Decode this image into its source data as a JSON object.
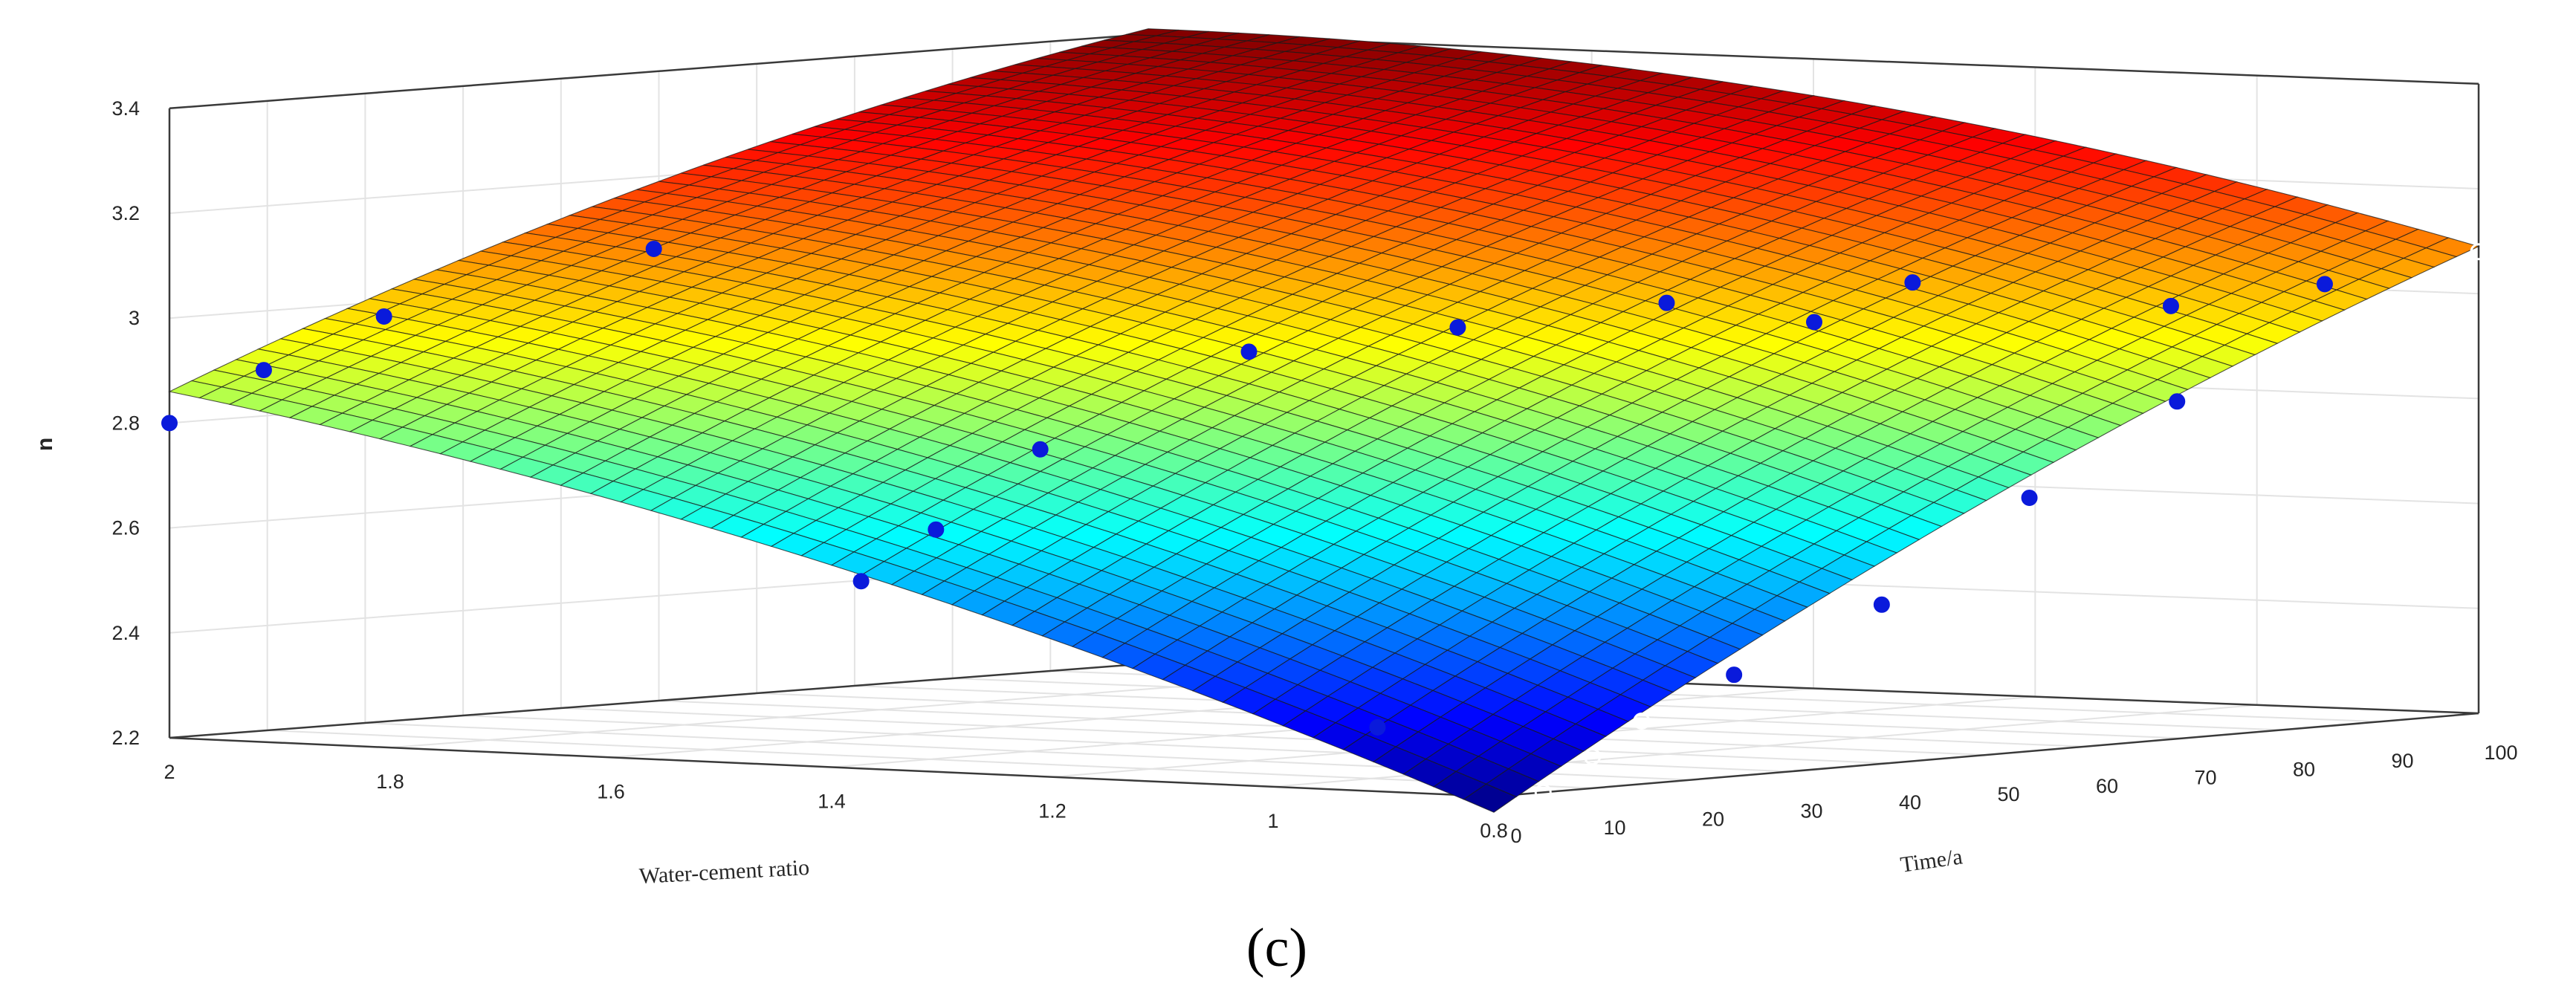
{
  "chart_data": {
    "type": "surface",
    "xlabel": "Water-cement  ratio",
    "ylabel": "Time/a",
    "zlabel": "n",
    "caption": "(c)",
    "x_ticks": [
      "2",
      "1.8",
      "1.6",
      "1.4",
      "1.2",
      "1",
      "0.8"
    ],
    "y_ticks": [
      "0",
      "10",
      "20",
      "30",
      "40",
      "50",
      "60",
      "70",
      "80",
      "90",
      "100"
    ],
    "z_ticks": [
      "2.2",
      "2.4",
      "2.6",
      "2.8",
      "3",
      "3.2",
      "3.4"
    ],
    "xlim": [
      0.8,
      2.0
    ],
    "ylim": [
      0,
      100
    ],
    "zlim": [
      2.2,
      3.4
    ],
    "grid": true,
    "colormap": "jet",
    "surface_corners": [
      {
        "w": 2.0,
        "t": 0,
        "n": 2.86
      },
      {
        "w": 0.8,
        "t": 0,
        "n": 2.17
      },
      {
        "w": 0.8,
        "t": 100,
        "n": 3.09
      },
      {
        "w": 2.0,
        "t": 100,
        "n": 3.41
      }
    ],
    "scatter": [
      {
        "w": 2.0,
        "t": 0,
        "n": 2.8
      },
      {
        "w": 1.95,
        "t": 4,
        "n": 2.9
      },
      {
        "w": 1.85,
        "t": 5,
        "n": 3.01
      },
      {
        "w": 1.65,
        "t": 10,
        "n": 3.15
      },
      {
        "w": 1.4,
        "t": 3,
        "n": 2.55
      },
      {
        "w": 1.35,
        "t": 5,
        "n": 2.65
      },
      {
        "w": 1.3,
        "t": 10,
        "n": 2.8
      },
      {
        "w": 1.2,
        "t": 20,
        "n": 2.98
      },
      {
        "w": 1.1,
        "t": 30,
        "n": 3.02
      },
      {
        "w": 1.0,
        "t": 40,
        "n": 3.06
      },
      {
        "w": 0.95,
        "t": 5,
        "n": 2.31
      },
      {
        "w": 0.8,
        "t": 5,
        "n": 2.2
      },
      {
        "w": 0.8,
        "t": 10,
        "n": 2.26
      },
      {
        "w": 0.8,
        "t": 15,
        "n": 2.32
      },
      {
        "w": 0.85,
        "t": 30,
        "n": 2.38
      },
      {
        "w": 0.85,
        "t": 45,
        "n": 2.49
      },
      {
        "w": 0.85,
        "t": 60,
        "n": 2.67
      },
      {
        "w": 0.85,
        "t": 75,
        "n": 2.83
      },
      {
        "w": 1.0,
        "t": 55,
        "n": 3.0
      },
      {
        "w": 1.0,
        "t": 65,
        "n": 3.06
      },
      {
        "w": 0.9,
        "t": 80,
        "n": 3.0
      },
      {
        "w": 0.85,
        "t": 90,
        "n": 3.03
      },
      {
        "w": 0.8,
        "t": 100,
        "n": 3.08
      }
    ]
  }
}
